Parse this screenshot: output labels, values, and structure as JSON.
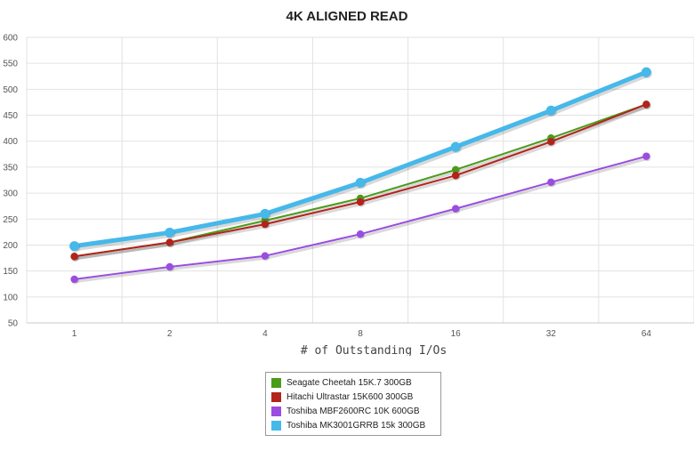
{
  "chart_data": {
    "type": "line",
    "title": "4K ALIGNED READ",
    "xlabel": "# of Outstanding I/Os",
    "ylabel": "",
    "categories": [
      "1",
      "2",
      "4",
      "8",
      "16",
      "32",
      "64"
    ],
    "ylim": [
      50,
      600
    ],
    "yticks": [
      50,
      100,
      150,
      200,
      250,
      300,
      350,
      400,
      450,
      500,
      550,
      600
    ],
    "grid": true,
    "legend_position": "bottom",
    "series": [
      {
        "name": "Seagate Cheetah 15K.7 300GB",
        "color": "#4a9b1a",
        "values": [
          178,
          205,
          247,
          290,
          345,
          406,
          471
        ]
      },
      {
        "name": "Hitachi Ultrastar 15K600 300GB",
        "color": "#b3231c",
        "values": [
          178,
          205,
          240,
          283,
          334,
          399,
          471
        ]
      },
      {
        "name": "Toshiba MBF2600RC 10K 600GB",
        "color": "#9a4de0",
        "values": [
          134,
          158,
          179,
          221,
          270,
          321,
          371
        ]
      },
      {
        "name": "Toshiba MK3001GRRB 15k 300GB",
        "color": "#46b8ea",
        "values": [
          198,
          224,
          260,
          320,
          389,
          459,
          533
        ]
      }
    ]
  }
}
